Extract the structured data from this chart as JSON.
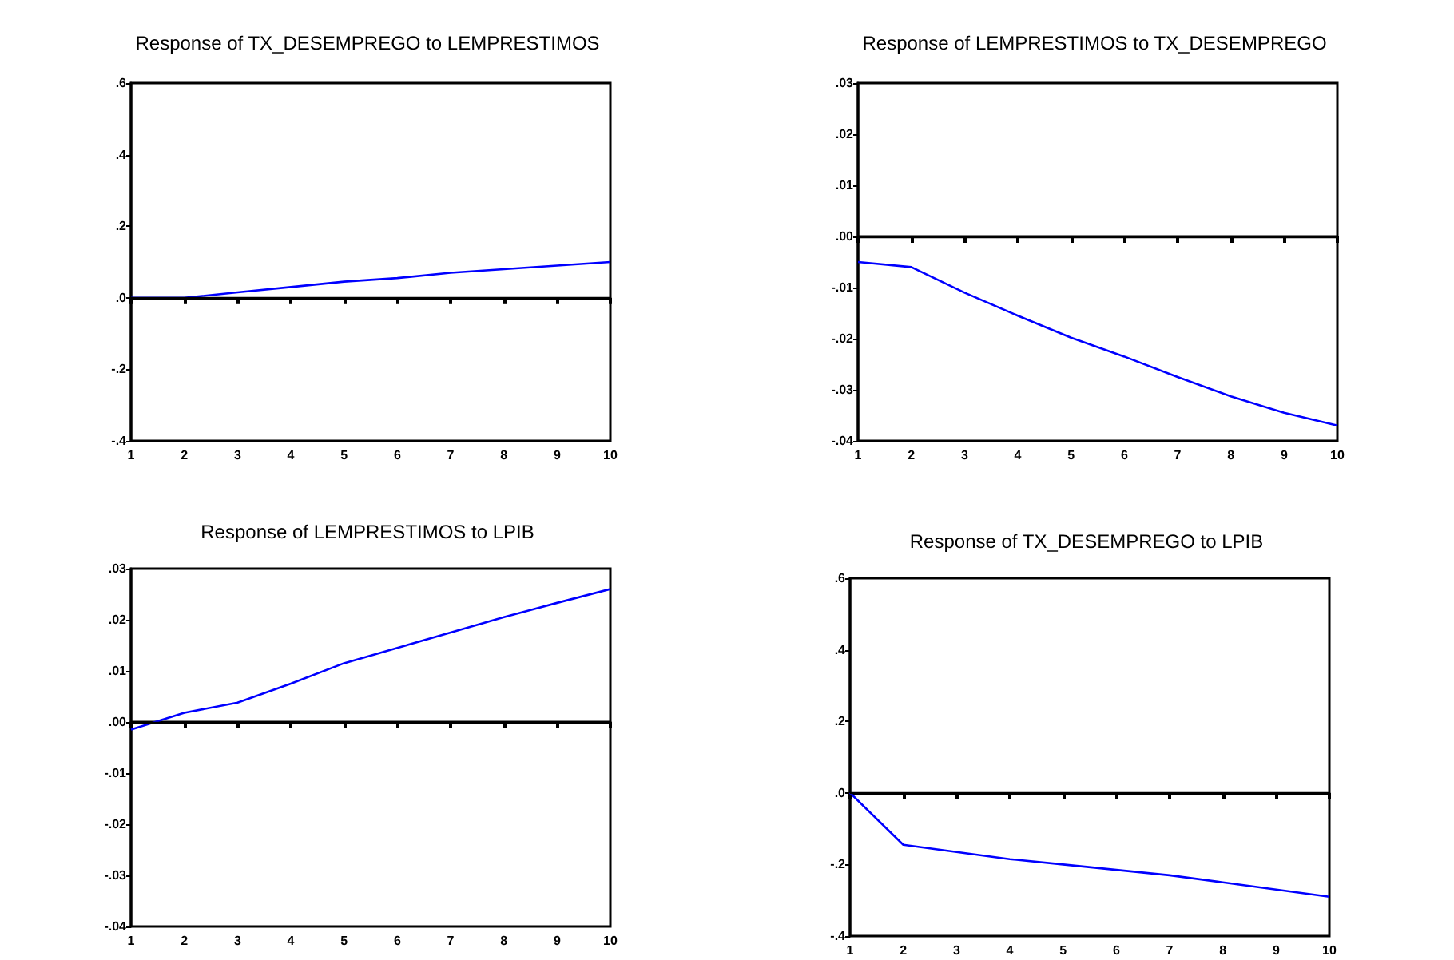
{
  "chart_data": [
    {
      "type": "line",
      "title": "Response of TX_DESEMPREGO to LEMPRESTIMOS",
      "x": [
        1,
        2,
        3,
        4,
        5,
        6,
        7,
        8,
        9,
        10
      ],
      "series": [
        {
          "color": "#0000ff",
          "values": [
            0,
            0.0,
            0.015,
            0.03,
            0.045,
            0.055,
            0.07,
            0.08,
            0.09,
            0.1
          ]
        }
      ],
      "xlim": [
        1,
        10
      ],
      "xticks": [
        1,
        2,
        3,
        4,
        5,
        6,
        7,
        8,
        9,
        10
      ],
      "ylim": [
        -0.4,
        0.6
      ],
      "yticks": [
        {
          "value": -0.4,
          "label": "-.4"
        },
        {
          "value": -0.2,
          "label": "-.2"
        },
        {
          "value": 0,
          "label": ".0"
        },
        {
          "value": 0.2,
          "label": ".2"
        },
        {
          "value": 0.4,
          "label": ".4"
        },
        {
          "value": 0.6,
          "label": ".6"
        }
      ],
      "ref_lines": [
        {
          "axis": "y",
          "value": 0,
          "color": "#000000"
        }
      ]
    },
    {
      "type": "line",
      "title": "Response of LEMPRESTIMOS to TX_DESEMPREGO",
      "x": [
        1,
        2,
        3,
        4,
        5,
        6,
        7,
        8,
        9,
        10
      ],
      "series": [
        {
          "color": "#0000ff",
          "values": [
            -0.005,
            -0.006,
            -0.011,
            -0.0155,
            -0.0198,
            -0.0235,
            -0.0275,
            -0.0313,
            -0.0345,
            -0.037
          ]
        }
      ],
      "xlim": [
        1,
        10
      ],
      "xticks": [
        1,
        2,
        3,
        4,
        5,
        6,
        7,
        8,
        9,
        10
      ],
      "ylim": [
        -0.04,
        0.03
      ],
      "yticks": [
        {
          "value": -0.04,
          "label": "-.04"
        },
        {
          "value": -0.03,
          "label": "-.03"
        },
        {
          "value": -0.02,
          "label": "-.02"
        },
        {
          "value": -0.01,
          "label": "-.01"
        },
        {
          "value": 0,
          "label": ".00"
        },
        {
          "value": 0.01,
          "label": ".01"
        },
        {
          "value": 0.02,
          "label": ".02"
        },
        {
          "value": 0.03,
          "label": ".03"
        }
      ],
      "ref_lines": [
        {
          "axis": "y",
          "value": 0,
          "color": "#000000"
        }
      ]
    },
    {
      "type": "line",
      "title": "Response of LEMPRESTIMOS to LPIB",
      "x": [
        1,
        2,
        3,
        4,
        5,
        6,
        7,
        8,
        9,
        10
      ],
      "series": [
        {
          "color": "#0000ff",
          "values": [
            -0.0015,
            0.0018,
            0.0038,
            0.0075,
            0.0115,
            0.0145,
            0.0175,
            0.0205,
            0.0233,
            0.026
          ]
        }
      ],
      "xlim": [
        1,
        10
      ],
      "xticks": [
        1,
        2,
        3,
        4,
        5,
        6,
        7,
        8,
        9,
        10
      ],
      "ylim": [
        -0.04,
        0.03
      ],
      "yticks": [
        {
          "value": -0.04,
          "label": "-.04"
        },
        {
          "value": -0.03,
          "label": "-.03"
        },
        {
          "value": -0.02,
          "label": "-.02"
        },
        {
          "value": -0.01,
          "label": "-.01"
        },
        {
          "value": 0,
          "label": ".00"
        },
        {
          "value": 0.01,
          "label": ".01"
        },
        {
          "value": 0.02,
          "label": ".02"
        },
        {
          "value": 0.03,
          "label": ".03"
        }
      ],
      "ref_lines": [
        {
          "axis": "y",
          "value": 0,
          "color": "#000000"
        }
      ]
    },
    {
      "type": "line",
      "title": "Response of TX_DESEMPREGO to LPIB",
      "x": [
        1,
        2,
        3,
        4,
        5,
        6,
        7,
        8,
        9,
        10
      ],
      "series": [
        {
          "color": "#0000ff",
          "values": [
            0.0,
            -0.145,
            -0.165,
            -0.185,
            -0.2,
            -0.215,
            -0.23,
            -0.25,
            -0.27,
            -0.29
          ]
        }
      ],
      "xlim": [
        1,
        10
      ],
      "xticks": [
        1,
        2,
        3,
        4,
        5,
        6,
        7,
        8,
        9,
        10
      ],
      "ylim": [
        -0.4,
        0.6
      ],
      "yticks": [
        {
          "value": -0.4,
          "label": "-.4"
        },
        {
          "value": -0.2,
          "label": "-.2"
        },
        {
          "value": 0,
          "label": ".0"
        },
        {
          "value": 0.2,
          "label": ".2"
        },
        {
          "value": 0.4,
          "label": ".4"
        },
        {
          "value": 0.6,
          "label": ".6"
        }
      ],
      "ref_lines": [
        {
          "axis": "y",
          "value": 0,
          "color": "#000000"
        }
      ]
    }
  ]
}
